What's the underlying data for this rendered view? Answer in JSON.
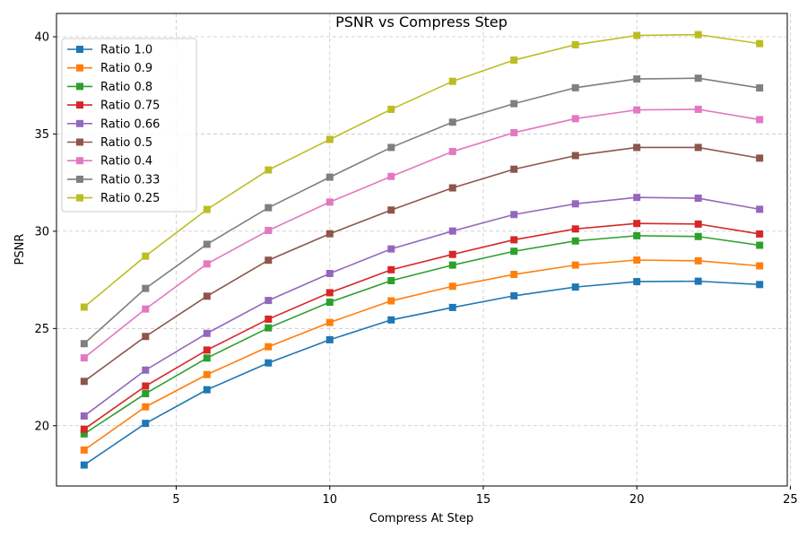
{
  "chart_data": {
    "type": "line",
    "title": "PSNR vs Compress Step",
    "xlabel": "Compress At Step",
    "ylabel": "PSNR",
    "xlim": [
      1.1,
      24.9
    ],
    "ylim": [
      16.9,
      41.2
    ],
    "xticks": [
      5,
      10,
      15,
      20,
      25
    ],
    "yticks": [
      20,
      25,
      30,
      35,
      40
    ],
    "grid": true,
    "legend_position": "top-left",
    "marker": "square",
    "x": [
      2,
      4,
      6,
      8,
      10,
      12,
      14,
      16,
      18,
      20,
      22,
      24
    ],
    "series": [
      {
        "name": "Ratio 1.0",
        "color": "#1f77b4",
        "values": [
          17.98,
          20.12,
          21.85,
          23.23,
          24.42,
          25.44,
          26.08,
          26.68,
          27.13,
          27.41,
          27.43,
          27.26
        ]
      },
      {
        "name": "Ratio 0.9",
        "color": "#ff7f0e",
        "values": [
          18.75,
          20.97,
          22.63,
          24.06,
          25.31,
          26.42,
          27.17,
          27.78,
          28.26,
          28.52,
          28.48,
          28.22
        ]
      },
      {
        "name": "Ratio 0.8",
        "color": "#2ca02c",
        "values": [
          19.58,
          21.65,
          23.48,
          25.03,
          26.35,
          27.46,
          28.26,
          28.97,
          29.5,
          29.77,
          29.73,
          29.28
        ]
      },
      {
        "name": "Ratio 0.75",
        "color": "#d62728",
        "values": [
          19.82,
          22.04,
          23.89,
          25.48,
          26.84,
          28.02,
          28.81,
          29.56,
          30.12,
          30.4,
          30.37,
          29.86
        ]
      },
      {
        "name": "Ratio 0.66",
        "color": "#9467bd",
        "values": [
          20.5,
          22.86,
          24.75,
          26.44,
          27.83,
          29.09,
          30.01,
          30.86,
          31.41,
          31.74,
          31.7,
          31.13
        ]
      },
      {
        "name": "Ratio 0.5",
        "color": "#8c564b",
        "values": [
          22.28,
          24.59,
          26.66,
          28.51,
          29.87,
          31.09,
          32.23,
          33.19,
          33.89,
          34.31,
          34.31,
          33.76
        ]
      },
      {
        "name": "Ratio 0.4",
        "color": "#e377c2",
        "values": [
          23.49,
          26.0,
          28.32,
          30.04,
          31.5,
          32.82,
          34.1,
          35.07,
          35.79,
          36.24,
          36.27,
          35.74
        ]
      },
      {
        "name": "Ratio 0.33",
        "color": "#7f7f7f",
        "values": [
          24.22,
          27.06,
          29.33,
          31.21,
          32.78,
          34.31,
          35.61,
          36.56,
          37.38,
          37.83,
          37.87,
          37.37
        ]
      },
      {
        "name": "Ratio 0.25",
        "color": "#bcbd22",
        "values": [
          26.1,
          28.72,
          31.12,
          33.15,
          34.72,
          36.27,
          37.71,
          38.8,
          39.59,
          40.07,
          40.11,
          39.65
        ]
      }
    ]
  }
}
